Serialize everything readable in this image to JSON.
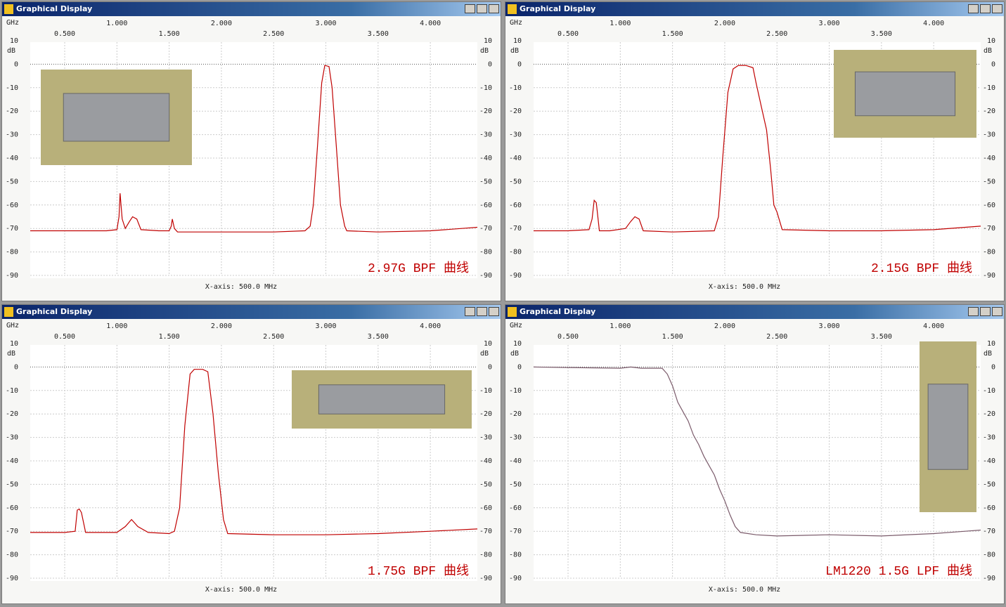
{
  "chart_data": [
    {
      "type": "line",
      "window_title": "Graphical Display",
      "x_unit": "GHz",
      "y_unit": "dB",
      "annotation": "2.97G BPF 曲线",
      "xlabel": "X-axis: 500.0 MHz",
      "xlim": [
        0.17,
        4.45
      ],
      "ylim": [
        -90,
        10
      ],
      "xticks": [
        {
          "value": 0.5,
          "label": "0.500"
        },
        {
          "value": 1,
          "label": "1.000"
        },
        {
          "value": 1.5,
          "label": "1.500"
        },
        {
          "value": 2,
          "label": "2.000"
        },
        {
          "value": 2.5,
          "label": "2.500"
        },
        {
          "value": 3,
          "label": "3.000"
        },
        {
          "value": 3.5,
          "label": "3.500"
        },
        {
          "value": 4,
          "label": "4.000"
        }
      ],
      "yticks": [
        10,
        0,
        -10,
        -20,
        -30,
        -40,
        -50,
        -60,
        -70,
        -80,
        -90
      ],
      "grid": true,
      "x": [
        0.17,
        0.5,
        0.9,
        1.0,
        1.02,
        1.03,
        1.05,
        1.08,
        1.12,
        1.15,
        1.19,
        1.23,
        1.4,
        1.5,
        1.52,
        1.53,
        1.55,
        1.58,
        2.0,
        2.5,
        2.8,
        2.85,
        2.88,
        2.92,
        2.96,
        2.99,
        3.03,
        3.06,
        3.1,
        3.14,
        3.18,
        3.2,
        3.5,
        4.0,
        4.3,
        4.45
      ],
      "series": [
        {
          "color": "#c00000",
          "values": [
            -71,
            -71,
            -71,
            -70.5,
            -65,
            -55,
            -66,
            -70,
            -67,
            -65,
            -66,
            -70.5,
            -71,
            -71,
            -69,
            -66,
            -70,
            -71.5,
            -71.5,
            -71.5,
            -71,
            -69,
            -60,
            -35,
            -8,
            -0.5,
            -1,
            -10,
            -35,
            -60,
            -69,
            -71,
            -71.5,
            -71,
            -70,
            -69.5
          ]
        }
      ]
    },
    {
      "type": "line",
      "window_title": "Graphical Display",
      "x_unit": "GHz",
      "y_unit": "dB",
      "annotation": "2.15G BPF 曲线",
      "xlabel": "X-axis: 500.0 MHz",
      "xlim": [
        0.17,
        4.45
      ],
      "ylim": [
        -90,
        10
      ],
      "xticks": [
        {
          "value": 0.5,
          "label": "0.500"
        },
        {
          "value": 1,
          "label": "1.000"
        },
        {
          "value": 1.5,
          "label": "1.500"
        },
        {
          "value": 2,
          "label": "2.000"
        },
        {
          "value": 2.5,
          "label": "2.500"
        },
        {
          "value": 3,
          "label": "3.000"
        },
        {
          "value": 3.5,
          "label": "3.500"
        },
        {
          "value": 4,
          "label": "4.000"
        }
      ],
      "yticks": [
        10,
        0,
        -10,
        -20,
        -30,
        -40,
        -50,
        -60,
        -70,
        -80,
        -90
      ],
      "grid": true,
      "x": [
        0.17,
        0.5,
        0.7,
        0.73,
        0.75,
        0.77,
        0.8,
        0.9,
        1.05,
        1.1,
        1.14,
        1.18,
        1.22,
        1.5,
        1.9,
        1.94,
        1.98,
        2.03,
        2.08,
        2.13,
        2.2,
        2.27,
        2.3,
        2.35,
        2.4,
        2.44,
        2.47,
        2.5,
        2.55,
        3.0,
        3.5,
        4.0,
        4.45
      ],
      "series": [
        {
          "color": "#c00000",
          "values": [
            -71,
            -71,
            -70.5,
            -66,
            -58,
            -59,
            -71,
            -71,
            -70,
            -67,
            -65,
            -66,
            -71,
            -71.5,
            -71,
            -65,
            -40,
            -12,
            -2,
            -0.5,
            -0.5,
            -1.5,
            -8,
            -18,
            -28,
            -45,
            -60,
            -63,
            -70.5,
            -71,
            -71,
            -70.5,
            -69
          ]
        }
      ]
    },
    {
      "type": "line",
      "window_title": "Graphical Display",
      "x_unit": "GHz",
      "y_unit": "dB",
      "annotation": "1.75G BPF 曲线",
      "xlabel": "X-axis: 500.0 MHz",
      "xlim": [
        0.17,
        4.45
      ],
      "ylim": [
        -90,
        10
      ],
      "xticks": [
        {
          "value": 0.5,
          "label": "0.500"
        },
        {
          "value": 1,
          "label": "1.000"
        },
        {
          "value": 1.5,
          "label": "1.500"
        },
        {
          "value": 2,
          "label": "2.000"
        },
        {
          "value": 2.5,
          "label": "2.500"
        },
        {
          "value": 3,
          "label": "3.000"
        },
        {
          "value": 3.5,
          "label": "3.500"
        },
        {
          "value": 4,
          "label": "4.000"
        }
      ],
      "yticks": [
        10,
        0,
        -10,
        -20,
        -30,
        -40,
        -50,
        -60,
        -70,
        -80,
        -90
      ],
      "grid": true,
      "x": [
        0.17,
        0.5,
        0.6,
        0.62,
        0.64,
        0.66,
        0.7,
        1.0,
        1.08,
        1.14,
        1.2,
        1.3,
        1.5,
        1.55,
        1.6,
        1.65,
        1.7,
        1.74,
        1.82,
        1.87,
        1.92,
        1.97,
        2.02,
        2.06,
        2.5,
        3.0,
        3.5,
        4.0,
        4.45
      ],
      "series": [
        {
          "color": "#c00000",
          "values": [
            -70.5,
            -70.5,
            -70,
            -61,
            -60.5,
            -62,
            -70.5,
            -70.5,
            -68,
            -65,
            -68,
            -70.5,
            -71,
            -70,
            -60,
            -25,
            -3,
            -1,
            -1,
            -2,
            -20,
            -45,
            -65,
            -71,
            -71.5,
            -71.5,
            -71,
            -70,
            -69
          ]
        }
      ]
    },
    {
      "type": "line",
      "window_title": "Graphical Display",
      "x_unit": "GHz",
      "y_unit": "dB",
      "annotation": "LM1220 1.5G LPF 曲线",
      "xlabel": "X-axis: 500.0 MHz",
      "xlim": [
        0.17,
        4.45
      ],
      "ylim": [
        -90,
        10
      ],
      "xticks": [
        {
          "value": 0.5,
          "label": "0.500"
        },
        {
          "value": 1,
          "label": "1.000"
        },
        {
          "value": 1.5,
          "label": "1.500"
        },
        {
          "value": 2,
          "label": "2.000"
        },
        {
          "value": 2.5,
          "label": "2.500"
        },
        {
          "value": 3,
          "label": "3.000"
        },
        {
          "value": 3.5,
          "label": "3.500"
        },
        {
          "value": 4,
          "label": "4.000"
        }
      ],
      "yticks": [
        10,
        0,
        -10,
        -20,
        -30,
        -40,
        -50,
        -60,
        -70,
        -80,
        -90
      ],
      "grid": true,
      "x": [
        0.17,
        0.5,
        1.0,
        1.1,
        1.2,
        1.4,
        1.45,
        1.5,
        1.55,
        1.6,
        1.65,
        1.7,
        1.75,
        1.8,
        1.85,
        1.9,
        1.95,
        2.0,
        2.05,
        2.1,
        2.15,
        2.3,
        2.5,
        3.0,
        3.5,
        4.0,
        4.3,
        4.45
      ],
      "series": [
        {
          "color": "#7a5a6a",
          "values": [
            0,
            -0.2,
            -0.5,
            0,
            -0.5,
            -0.5,
            -3,
            -8,
            -15,
            -19,
            -23,
            -29,
            -33,
            -38,
            -42,
            -46,
            -52,
            -57,
            -63,
            -68,
            -70.5,
            -71.5,
            -72,
            -71.5,
            -72,
            -71,
            -70,
            -69.5
          ]
        }
      ]
    }
  ]
}
